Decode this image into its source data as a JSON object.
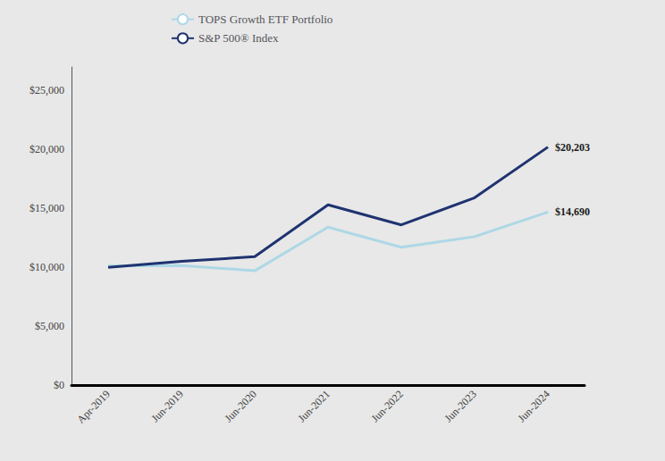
{
  "chart_data": {
    "type": "line",
    "categories": [
      "Apr-2019",
      "Jun-2019",
      "Jun-2020",
      "Jun-2021",
      "Jun-2022",
      "Jun-2023",
      "Jun-2024"
    ],
    "series": [
      {
        "name": "TOPS Growth ETF Portfolio",
        "color": "#add8e6",
        "values": [
          10100,
          10150,
          9700,
          13400,
          11700,
          12600,
          14690
        ]
      },
      {
        "name": "S&P 500® Index",
        "color": "#1f3370",
        "values": [
          10000,
          10500,
          10900,
          15300,
          13600,
          15900,
          20203
        ]
      }
    ],
    "annotations": [
      {
        "text": "$20,203",
        "x": "Jun-2024",
        "y": 20203
      },
      {
        "text": "$14,690",
        "x": "Jun-2024",
        "y": 14690
      }
    ],
    "ylim": [
      0,
      27000
    ],
    "yticks": [
      {
        "value": 0,
        "label": "$0"
      },
      {
        "value": 5000,
        "label": "$5,000"
      },
      {
        "value": 10000,
        "label": "$10,000"
      },
      {
        "value": 15000,
        "label": "$15,000"
      },
      {
        "value": 20000,
        "label": "$20,000"
      },
      {
        "value": 25000,
        "label": "$25,000"
      }
    ],
    "grid": false,
    "legend": "upper left"
  }
}
